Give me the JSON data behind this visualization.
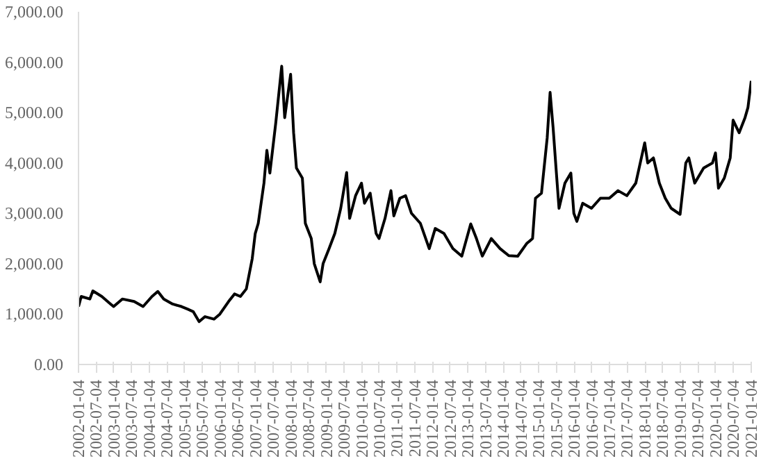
{
  "chart_data": {
    "type": "line",
    "grid": false,
    "line_style": "solid",
    "xlim": [
      "2002-01-04",
      "2021-01-04"
    ],
    "xticks": [
      "2002-01-04",
      "2002-07-04",
      "2003-01-04",
      "2003-07-04",
      "2004-01-04",
      "2004-07-04",
      "2005-01-04",
      "2005-07-04",
      "2006-01-04",
      "2006-07-04",
      "2007-01-04",
      "2007-07-04",
      "2008-01-04",
      "2008-07-04",
      "2009-01-04",
      "2009-07-04",
      "2010-01-04",
      "2010-07-04",
      "2011-01-04",
      "2011-07-04",
      "2012-01-04",
      "2012-07-04",
      "2013-01-04",
      "2013-07-04",
      "2014-01-04",
      "2014-07-04",
      "2015-01-04",
      "2015-07-04",
      "2016-01-04",
      "2016-07-04",
      "2017-01-04",
      "2017-07-04",
      "2018-01-04",
      "2018-07-04",
      "2019-01-04",
      "2019-07-04",
      "2020-01-04",
      "2020-07-04",
      "2021-01-04"
    ],
    "ylim": [
      0,
      7000
    ],
    "yticks": [
      {
        "value": 0,
        "label": "0.00"
      },
      {
        "value": 1000,
        "label": "1,000.00"
      },
      {
        "value": 2000,
        "label": "2,000.00"
      },
      {
        "value": 3000,
        "label": "3,000.00"
      },
      {
        "value": 4000,
        "label": "4,000.00"
      },
      {
        "value": 5000,
        "label": "5,000.00"
      },
      {
        "value": 6000,
        "label": "6,000.00"
      },
      {
        "value": 7000,
        "label": "7,000.00"
      }
    ],
    "x": [
      "2002-01-04",
      "2002-02",
      "2002-05",
      "2002-06",
      "2002-09",
      "2002-12",
      "2003-01",
      "2003-04",
      "2003-08",
      "2003-11",
      "2004-02",
      "2004-04",
      "2004-06",
      "2004-09",
      "2004-12",
      "2005-02",
      "2005-04",
      "2005-06",
      "2005-08",
      "2005-11",
      "2006-01",
      "2006-04",
      "2006-06",
      "2006-08",
      "2006-10",
      "2006-12",
      "2007-01",
      "2007-02",
      "2007-04",
      "2007-05",
      "2007-06",
      "2007-08",
      "2007-10",
      "2007-11",
      "2008-01",
      "2008-02",
      "2008-03",
      "2008-05",
      "2008-06",
      "2008-08",
      "2008-09",
      "2008-11",
      "2008-12",
      "2009-02",
      "2009-04",
      "2009-06",
      "2009-08",
      "2009-09",
      "2009-11",
      "2010-01",
      "2010-02",
      "2010-04",
      "2010-06",
      "2010-07",
      "2010-09",
      "2010-11",
      "2010-12",
      "2011-02",
      "2011-04",
      "2011-06",
      "2011-09",
      "2011-12",
      "2012-02",
      "2012-05",
      "2012-08",
      "2012-11",
      "2013-02",
      "2013-04",
      "2013-06",
      "2013-09",
      "2013-12",
      "2014-03",
      "2014-06",
      "2014-09",
      "2014-11",
      "2014-12",
      "2015-02",
      "2015-04",
      "2015-05",
      "2015-06",
      "2015-07",
      "2015-08",
      "2015-10",
      "2015-12",
      "2016-01",
      "2016-02",
      "2016-04",
      "2016-07",
      "2016-10",
      "2017-01",
      "2017-04",
      "2017-07",
      "2017-10",
      "2018-01",
      "2018-02",
      "2018-04",
      "2018-06",
      "2018-08",
      "2018-10",
      "2019-01",
      "2019-03",
      "2019-04",
      "2019-06",
      "2019-09",
      "2019-12",
      "2020-01",
      "2020-02",
      "2020-04",
      "2020-06",
      "2020-07",
      "2020-09",
      "2020-11",
      "2020-12",
      "2021-01-04"
    ],
    "series": [
      {
        "color": "#000000",
        "values": [
          1150,
          1350,
          1300,
          1460,
          1350,
          1200,
          1150,
          1300,
          1250,
          1150,
          1350,
          1450,
          1300,
          1200,
          1150,
          1100,
          1050,
          850,
          950,
          900,
          1000,
          1250,
          1400,
          1350,
          1500,
          2100,
          2600,
          2800,
          3600,
          4250,
          3800,
          4800,
          5920,
          4900,
          5760,
          4600,
          3900,
          3700,
          2800,
          2500,
          2000,
          1640,
          2000,
          2300,
          2600,
          3100,
          3810,
          2900,
          3350,
          3600,
          3200,
          3400,
          2600,
          2500,
          2900,
          3450,
          2950,
          3300,
          3350,
          3000,
          2800,
          2300,
          2700,
          2600,
          2300,
          2150,
          2790,
          2500,
          2150,
          2500,
          2300,
          2160,
          2150,
          2400,
          2500,
          3300,
          3400,
          4500,
          5400,
          4700,
          3900,
          3100,
          3600,
          3800,
          3000,
          2840,
          3200,
          3100,
          3300,
          3300,
          3450,
          3350,
          3600,
          4400,
          4000,
          4100,
          3600,
          3300,
          3100,
          2980,
          4000,
          4100,
          3600,
          3900,
          4000,
          4200,
          3500,
          3700,
          4100,
          4850,
          4600,
          4900,
          5100,
          5630
        ]
      }
    ]
  }
}
